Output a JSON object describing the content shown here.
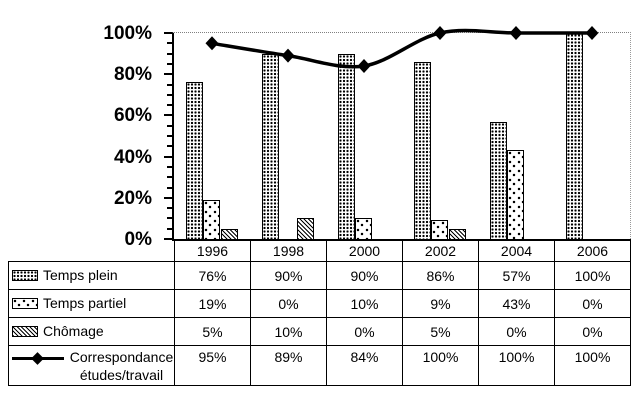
{
  "colors": {
    "foreground": "#000000",
    "background": "#ffffff",
    "gridline_100pct": "#808080",
    "plot_right_border": "#999999"
  },
  "chart_data": {
    "type": "bar+line",
    "categories": [
      "1996",
      "1998",
      "2000",
      "2002",
      "2004",
      "2006"
    ],
    "series": [
      {
        "name": "Temps plein",
        "type": "bar",
        "pattern": "dense-dots",
        "values": [
          76,
          90,
          90,
          86,
          57,
          100
        ],
        "values_display": [
          "76%",
          "90%",
          "90%",
          "86%",
          "57%",
          "100%"
        ]
      },
      {
        "name": "Temps partiel",
        "type": "bar",
        "pattern": "sparse-marks",
        "values": [
          19,
          0,
          10,
          9,
          43,
          0
        ],
        "values_display": [
          "19%",
          "0%",
          "10%",
          "9%",
          "43%",
          "0%"
        ]
      },
      {
        "name": "Chômage",
        "type": "bar",
        "pattern": "diag-dots",
        "values": [
          5,
          10,
          0,
          5,
          0,
          0
        ],
        "values_display": [
          "5%",
          "10%",
          "0%",
          "5%",
          "0%",
          "0%"
        ]
      },
      {
        "name": "Correspondance études/travail",
        "type": "line",
        "marker": "diamond",
        "values": [
          95,
          89,
          84,
          100,
          100,
          100
        ],
        "values_display": [
          "95%",
          "89%",
          "84%",
          "100%",
          "100%",
          "100%"
        ]
      }
    ],
    "y_axis": {
      "min": 0,
      "max": 100,
      "major_step": 20,
      "minor_step": 5,
      "tick_labels": [
        "100%",
        "80%",
        "60%",
        "40%",
        "20%",
        "0%"
      ]
    },
    "gridline_at": 100,
    "grid": "top-only-dotted",
    "legend_position": "table-left-column",
    "value_suffix": "%"
  }
}
